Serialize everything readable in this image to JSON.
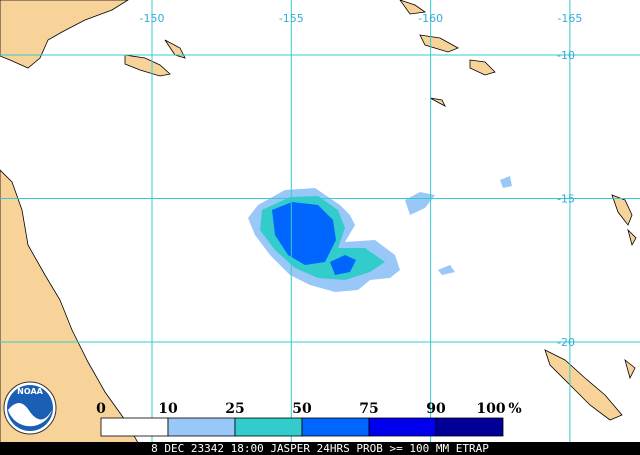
{
  "map": {
    "lon_labels": [
      -150,
      -155,
      -160,
      -165
    ],
    "lat_labels": [
      -10,
      -15,
      -20
    ],
    "logo": "NOAA",
    "legend": {
      "labels": [
        0,
        10,
        25,
        50,
        75,
        90,
        100
      ],
      "unit": "%",
      "colors": [
        "#ffffff",
        "#99c8f8",
        "#33cccc",
        "#0066ff",
        "#0000ee",
        "#000099"
      ]
    },
    "footer": "8 DEC 23342 18:00 JASPER 24HRS PROB >= 100 MM ETRAP"
  }
}
